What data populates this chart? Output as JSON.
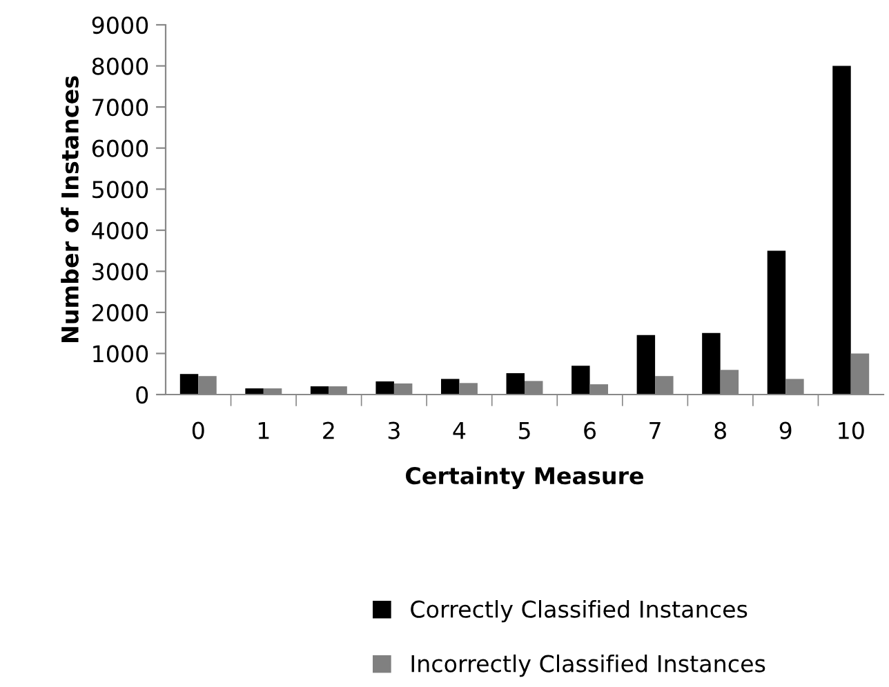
{
  "chart_data": {
    "type": "bar",
    "xlabel": "Certainty Measure",
    "ylabel": "Number of Instances",
    "categories": [
      "0",
      "1",
      "2",
      "3",
      "4",
      "5",
      "6",
      "7",
      "8",
      "9",
      "10"
    ],
    "series": [
      {
        "name": "Correctly Classified Instances",
        "color": "#000000",
        "values": [
          500,
          150,
          200,
          320,
          380,
          520,
          700,
          1450,
          1500,
          3500,
          8000
        ]
      },
      {
        "name": "Incorrectly Classified Instances",
        "color": "#808080",
        "values": [
          450,
          150,
          200,
          270,
          280,
          330,
          250,
          450,
          600,
          380,
          1000
        ]
      }
    ],
    "ylim": [
      0,
      9000
    ],
    "yticks": [
      0,
      1000,
      2000,
      3000,
      4000,
      5000,
      6000,
      7000,
      8000,
      9000
    ],
    "grid": false,
    "legend": "bottom"
  }
}
